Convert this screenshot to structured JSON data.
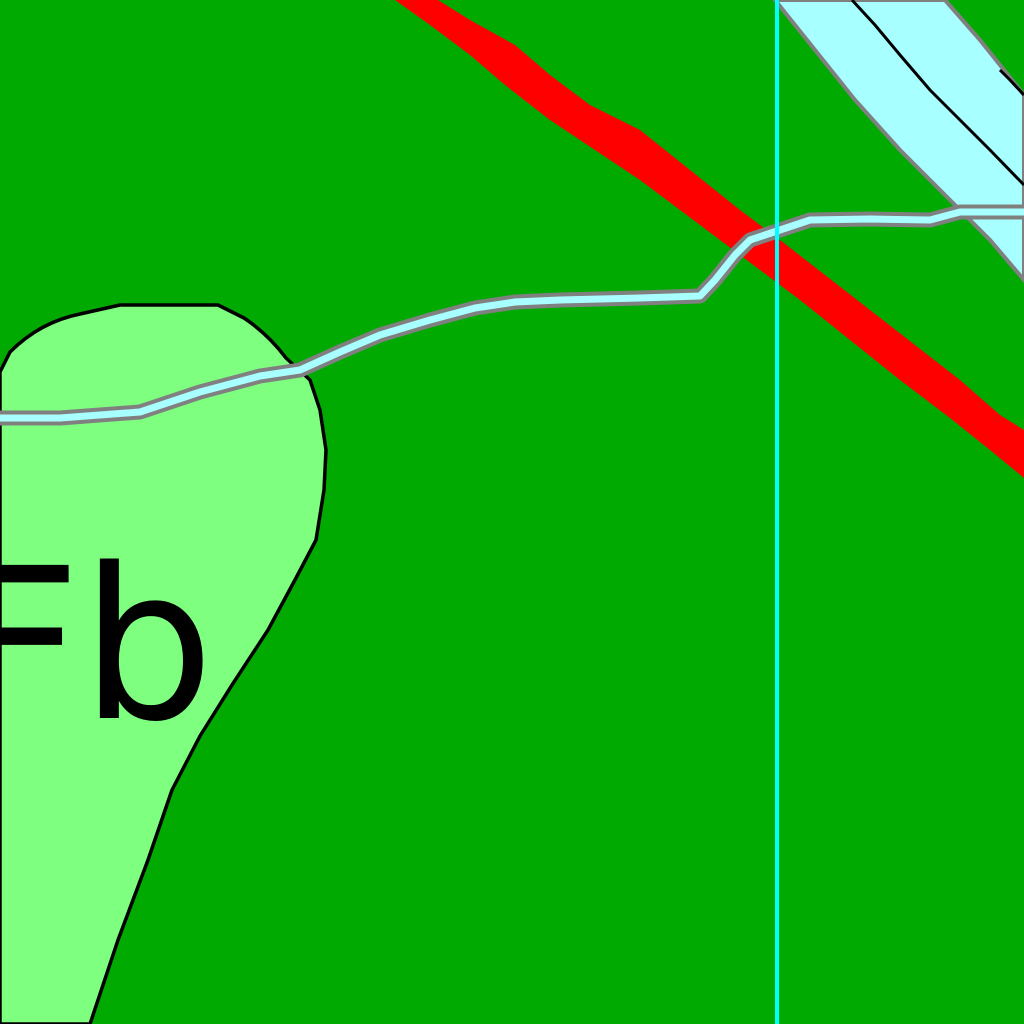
{
  "map": {
    "colors": {
      "background_unit": "#00aa00",
      "highlighted_unit": "#7fff7f",
      "unit_boundary": "#000000",
      "stream": "#a8ffff",
      "stream_edge": "#808080",
      "road": "#ff0000",
      "grid_line": "#00ffff",
      "river": "#a8ffff"
    },
    "unit_label": "Fb",
    "features": [
      {
        "name": "geologic-unit-polygon",
        "kind": "polygon"
      },
      {
        "name": "river-channel",
        "kind": "water-body"
      },
      {
        "name": "stream",
        "kind": "line"
      },
      {
        "name": "road",
        "kind": "line"
      },
      {
        "name": "grid-line",
        "kind": "line"
      }
    ]
  }
}
